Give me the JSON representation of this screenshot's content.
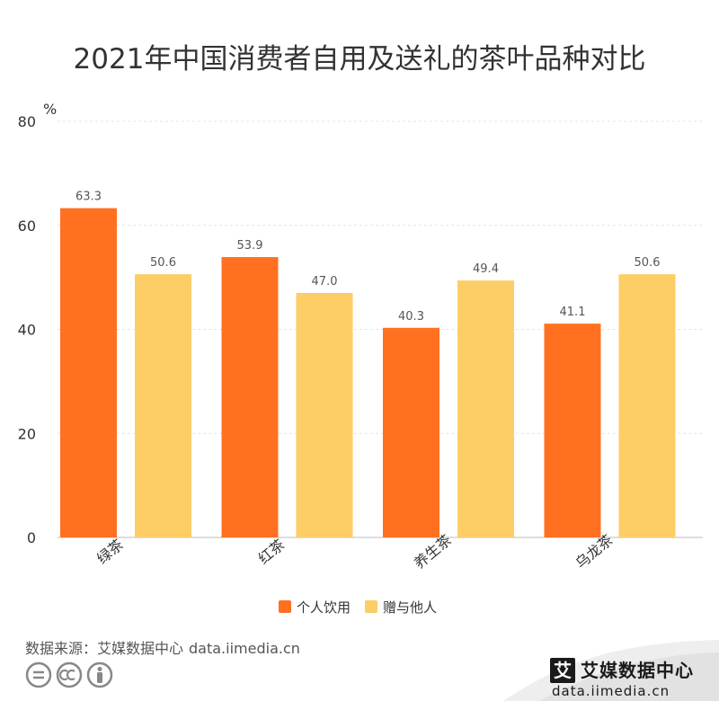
{
  "title": "2021年中国消费者自用及送礼的茶叶品种对比",
  "source": {
    "label": "数据来源：艾媒数据中心",
    "url": "data.iimedia.cn"
  },
  "logo": {
    "badge": "艾",
    "brand": "艾媒数据中心",
    "domain": "data.iimedia.cn"
  },
  "colors": {
    "personal": "#FF7020",
    "gift": "#FDCD66",
    "grid": "#e4e4e4",
    "axis": "#bbbbbb",
    "label": "#555555"
  },
  "chart_data": {
    "type": "bar",
    "title": "2021年中国消费者自用及送礼的茶叶品种对比",
    "ylabel": "%",
    "xlabel": "",
    "ylim": [
      0,
      80
    ],
    "yticks": [
      0,
      20,
      40,
      60,
      80
    ],
    "grid": true,
    "legend_position": "bottom-center",
    "categories": [
      "绿茶",
      "红茶",
      "养生茶",
      "乌龙茶"
    ],
    "series": [
      {
        "name": "个人饮用",
        "values": [
          63.3,
          53.9,
          40.3,
          41.1
        ]
      },
      {
        "name": "赠与他人",
        "values": [
          50.6,
          47.0,
          49.4,
          50.6
        ]
      }
    ],
    "value_labels": [
      [
        "63.3",
        "53.9",
        "40.3",
        "41.1"
      ],
      [
        "50.6",
        "47.0",
        "49.4",
        "50.6"
      ]
    ]
  }
}
